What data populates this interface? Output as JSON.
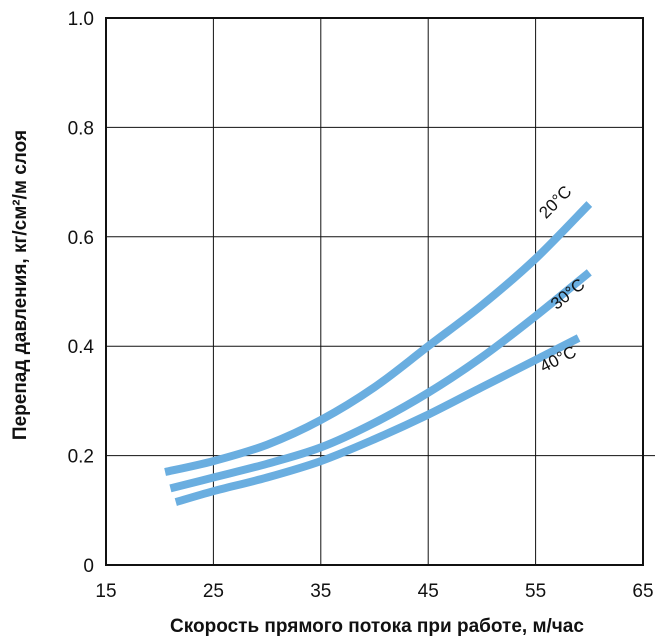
{
  "chart_data": {
    "type": "line",
    "xlabel": "Скорость прямого потока при работе, м/час",
    "ylabel": "Перепад давления,  кг/см²/м слоя",
    "xlim": [
      15,
      65
    ],
    "ylim": [
      0,
      1.0
    ],
    "x_ticks": [
      "15",
      "25",
      "35",
      "45",
      "55",
      "65"
    ],
    "y_ticks": [
      "0",
      "0.2",
      "0.4",
      "0.6",
      "0.8",
      "1.0"
    ],
    "grid": true,
    "line_color": "#6aaee0",
    "series": [
      {
        "name": "20°C",
        "points": [
          [
            20.5,
            0.17
          ],
          [
            25,
            0.19
          ],
          [
            30,
            0.22
          ],
          [
            35,
            0.265
          ],
          [
            40,
            0.325
          ],
          [
            45,
            0.4
          ],
          [
            50,
            0.475
          ],
          [
            55,
            0.56
          ],
          [
            60,
            0.66
          ]
        ]
      },
      {
        "name": "30°C",
        "points": [
          [
            21,
            0.14
          ],
          [
            25,
            0.16
          ],
          [
            30,
            0.185
          ],
          [
            35,
            0.215
          ],
          [
            40,
            0.26
          ],
          [
            45,
            0.315
          ],
          [
            50,
            0.38
          ],
          [
            55,
            0.455
          ],
          [
            60,
            0.535
          ]
        ]
      },
      {
        "name": "40°C",
        "points": [
          [
            21.5,
            0.115
          ],
          [
            25,
            0.135
          ],
          [
            30,
            0.16
          ],
          [
            35,
            0.19
          ],
          [
            40,
            0.23
          ],
          [
            45,
            0.275
          ],
          [
            50,
            0.325
          ],
          [
            55,
            0.375
          ],
          [
            59,
            0.415
          ]
        ]
      }
    ]
  }
}
